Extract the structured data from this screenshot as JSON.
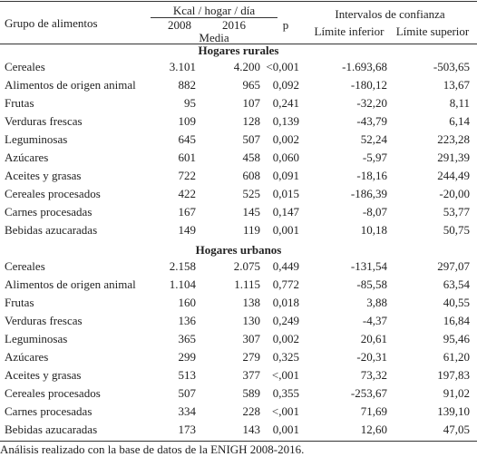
{
  "header": {
    "col_group": "Grupo de alimentos",
    "kcal": "Kcal / hogar / día",
    "year1": "2008",
    "year2": "2016",
    "media": "Media",
    "p": "p",
    "ic": "Intervalos de confianza",
    "lower": "Límite inferior",
    "upper": "Límite superior"
  },
  "sections": [
    {
      "title": "Hogares rurales",
      "rows": [
        [
          "Cereales",
          "3.101",
          "4.200",
          "<0,001",
          "-1.693,68",
          "-503,65"
        ],
        [
          "Alimentos de origen animal",
          "882",
          "965",
          "0,092",
          "-180,12",
          "13,67"
        ],
        [
          "Frutas",
          "95",
          "107",
          "0,241",
          "-32,20",
          "8,11"
        ],
        [
          "Verduras frescas",
          "109",
          "128",
          "0,139",
          "-43,79",
          "6,14"
        ],
        [
          "Leguminosas",
          "645",
          "507",
          "0,002",
          "52,24",
          "223,28"
        ],
        [
          "Azúcares",
          "601",
          "458",
          "0,060",
          "-5,97",
          "291,39"
        ],
        [
          "Aceites y grasas",
          "722",
          "608",
          "0,091",
          "-18,16",
          "244,49"
        ],
        [
          "Cereales procesados",
          "422",
          "525",
          "0,015",
          "-186,39",
          "-20,00"
        ],
        [
          "Carnes procesadas",
          "167",
          "145",
          "0,147",
          "-8,07",
          "53,77"
        ],
        [
          "Bebidas azucaradas",
          "149",
          "119",
          "0,001",
          "10,18",
          "50,75"
        ]
      ]
    },
    {
      "title": "Hogares urbanos",
      "rows": [
        [
          "Cereales",
          "2.158",
          "2.075",
          "0,449",
          "-131,54",
          "297,07"
        ],
        [
          "Alimentos de origen animal",
          "1.104",
          "1.115",
          "0,772",
          "-85,58",
          "63,54"
        ],
        [
          "Frutas",
          "160",
          "138",
          "0,018",
          "3,88",
          "40,55"
        ],
        [
          "Verduras frescas",
          "136",
          "130",
          "0,249",
          "-4,37",
          "16,84"
        ],
        [
          "Leguminosas",
          "365",
          "307",
          "0,002",
          "20,61",
          "95,46"
        ],
        [
          "Azúcares",
          "299",
          "279",
          "0,325",
          "-20,31",
          "61,20"
        ],
        [
          "Aceites y grasas",
          "513",
          "377",
          "<,001",
          "73,32",
          "197,83"
        ],
        [
          "Cereales procesados",
          "507",
          "589",
          "0,355",
          "-253,67",
          "91,02"
        ],
        [
          "Carnes procesadas",
          "334",
          "228",
          "<,001",
          "71,69",
          "139,10"
        ],
        [
          "Bebidas azucaradas",
          "173",
          "143",
          "0,001",
          "12,60",
          "47,05"
        ]
      ]
    }
  ],
  "footnote": "Análisis realizado con la base de datos de la ENIGH 2008-2016."
}
